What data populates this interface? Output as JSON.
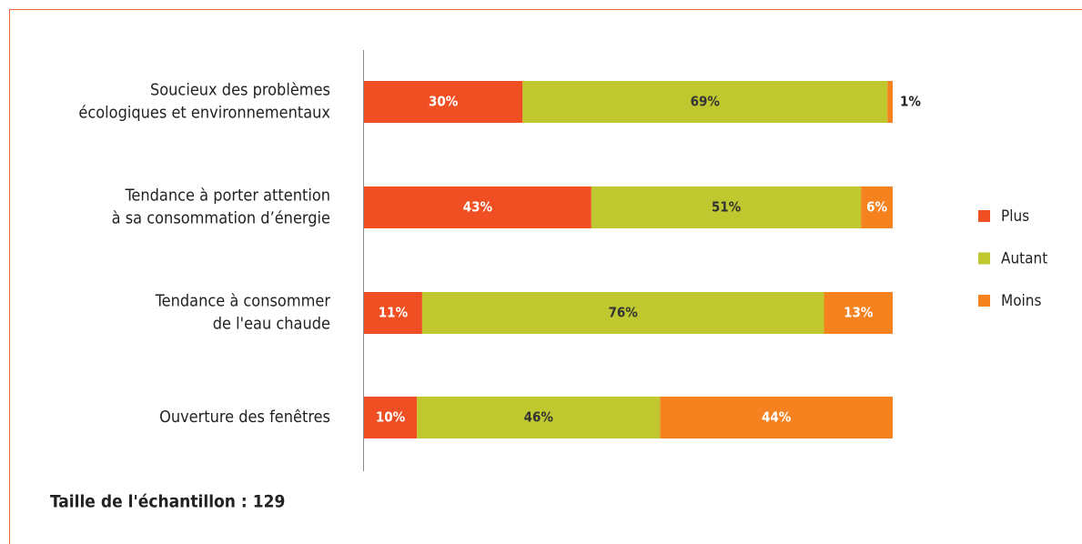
{
  "chart_data": {
    "type": "stacked_hbar",
    "categories": [
      "Soucieux des problèmes\nécologiques et environnementaux",
      "Tendance à porter attention\nà sa consommation d’énergie",
      "Tendance à consommer\nde l'eau chaude",
      "Ouverture des fenêtres"
    ],
    "series": [
      {
        "name": "Plus",
        "color": "#f04e23",
        "label_color": "#ffffff",
        "values": [
          30,
          43,
          11,
          10
        ],
        "value_labels": [
          "30%",
          "43%",
          "11%",
          "10%"
        ]
      },
      {
        "name": "Autant",
        "color": "#bfc92f",
        "label_color": "#333333",
        "values": [
          69,
          51,
          76,
          46
        ],
        "value_labels": [
          "69%",
          "51%",
          "76%",
          "46%"
        ]
      },
      {
        "name": "Moins",
        "color": "#f5821f",
        "label_color": "#ffffff",
        "values": [
          1,
          6,
          13,
          44
        ],
        "value_labels": [
          "1%",
          "6%",
          "13%",
          "44%"
        ]
      }
    ],
    "xlim": [
      0,
      100
    ],
    "legend": "right",
    "footnote": "Taille de l'échantillon : 129"
  }
}
